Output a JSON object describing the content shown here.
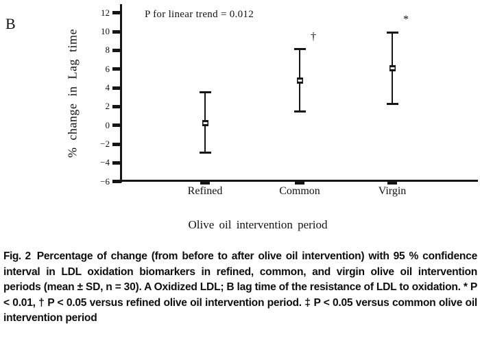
{
  "panel": {
    "label": "B"
  },
  "chart_data": {
    "type": "scatter",
    "subtype": "mean-with-95ci-error-bars",
    "title": "",
    "annotation": "P for linear trend = 0.012",
    "xlabel": "Olive oil intervention period",
    "ylabel": "% change in Lag time",
    "categories": [
      "Refined",
      "Common",
      "Virgin"
    ],
    "series": [
      {
        "name": "% change in Lag time (mean, 95% CI)",
        "points": [
          {
            "category": "Refined",
            "mean": 0.2,
            "ci_low": -2.9,
            "ci_high": 3.5,
            "significance": ""
          },
          {
            "category": "Common",
            "mean": 4.8,
            "ci_low": 1.5,
            "ci_high": 8.1,
            "significance": "†"
          },
          {
            "category": "Virgin",
            "mean": 6.1,
            "ci_low": 2.3,
            "ci_high": 9.9,
            "significance": "*"
          }
        ]
      }
    ],
    "ylim": [
      -6,
      12
    ],
    "yticks": [
      12,
      10,
      8,
      6,
      4,
      2,
      0,
      -2,
      -4,
      -6
    ],
    "grid": false,
    "legend": null
  },
  "caption": {
    "label": "Fig. 2",
    "part1": "Percentage of change (from before to after olive oil intervention) with 95 % confidence interval in LDL oxidation biomarkers in refined, common, and virgin olive oil intervention periods (mean ± SD, n = 30). ",
    "label_a": "A",
    "part2": " Oxidized LDL; ",
    "label_b": "B",
    "part3": " lag time of the resistance of LDL to oxidation. * P < 0.01, † P < 0.05 versus refined olive oil intervention period. ‡ P < 0.05 versus common olive oil intervention period"
  },
  "colors": {
    "ink": "#151515",
    "background": "#ffffff"
  }
}
